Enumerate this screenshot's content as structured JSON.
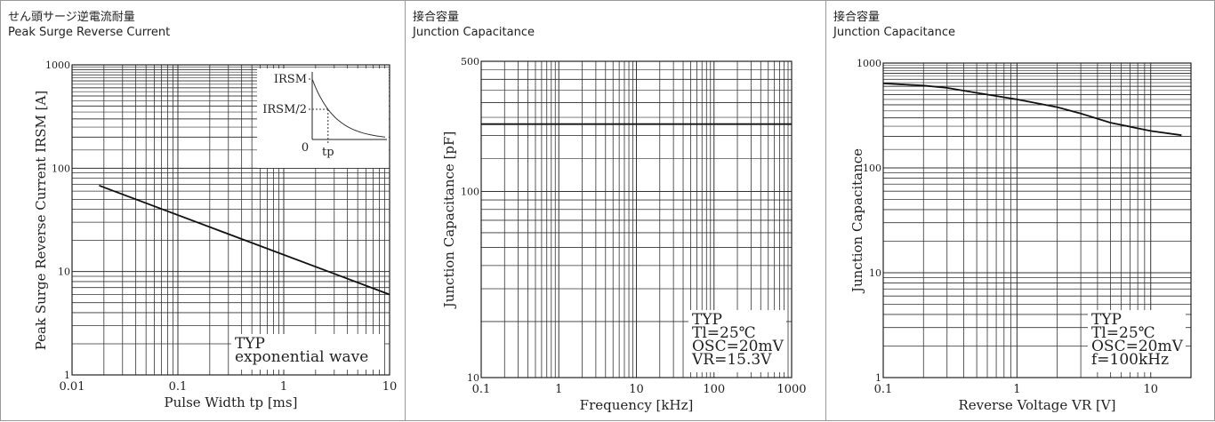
{
  "chart_data": [
    {
      "type": "line",
      "title_jp": "せん頭サージ逆電流耐量",
      "title": "Peak Surge Reverse Current",
      "xlabel": "Pulse Width tp [ms]",
      "ylabel": "Peak Surge Reverse Current IRSM [A]",
      "x_scale": "log",
      "y_scale": "log",
      "xlim": [
        0.01,
        10
      ],
      "ylim": [
        1,
        1000
      ],
      "x_ticks": [
        "0.01",
        "0.1",
        "1",
        "10"
      ],
      "y_ticks": [
        "1",
        "10",
        "100",
        "1000"
      ],
      "grid": true,
      "series": [
        {
          "x": [
            0.018,
            10
          ],
          "y": [
            68,
            6
          ]
        }
      ],
      "annotation": [
        "TYP",
        "exponential wave"
      ],
      "inset": {
        "label_peak": "IRSM",
        "label_half": "IRSM/2",
        "label_origin": "0",
        "label_tp": "tp"
      }
    },
    {
      "type": "line",
      "title_jp": "接合容量",
      "title": "Junction Capacitance",
      "xlabel": "Frequency [kHz]",
      "ylabel": "Junction Capacitance [pF]",
      "x_scale": "log",
      "y_scale": "log",
      "xlim": [
        0.1,
        1000
      ],
      "ylim": [
        10,
        500
      ],
      "x_ticks": [
        "0.1",
        "1",
        "10",
        "100",
        "1000"
      ],
      "y_ticks": [
        "10",
        "100",
        "500"
      ],
      "grid": true,
      "series": [
        {
          "x": [
            0.1,
            1000
          ],
          "y": [
            230,
            230
          ]
        }
      ],
      "annotation": [
        "TYP",
        "Tl=25℃",
        "OSC=20mV",
        "VR=15.3V"
      ]
    },
    {
      "type": "line",
      "title_jp": "接合容量",
      "title": "Junction Capacitance",
      "xlabel": "Reverse Voltage VR [V]",
      "ylabel": "Junction Capacitance",
      "x_scale": "log",
      "y_scale": "log",
      "xlim": [
        0.1,
        20
      ],
      "ylim": [
        1,
        1000
      ],
      "x_ticks": [
        "0.1",
        "1",
        "10"
      ],
      "y_ticks": [
        "1",
        "10",
        "100",
        "1000"
      ],
      "grid": true,
      "series": [
        {
          "x": [
            0.1,
            0.2,
            0.3,
            0.5,
            1,
            2,
            3,
            5,
            10,
            17
          ],
          "y": [
            640,
            610,
            580,
            520,
            450,
            380,
            330,
            270,
            225,
            205
          ]
        }
      ],
      "annotation": [
        "TYP",
        "Tl=25℃",
        "OSC=20mV",
        "f=100kHz"
      ]
    }
  ]
}
